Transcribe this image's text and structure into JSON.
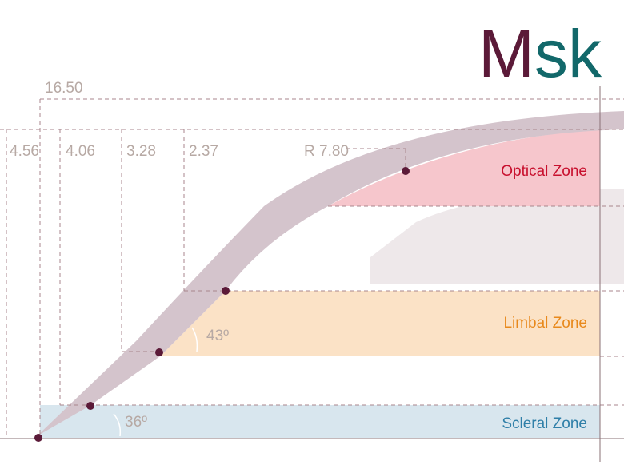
{
  "logo": {
    "part1": "M",
    "part2": "sk",
    "color1": "#5b1a38",
    "color2": "#12686a"
  },
  "dimensions": {
    "total": "16.50",
    "d1": "4.56",
    "d2": "4.06",
    "d3": "3.28",
    "d4": "2.37",
    "radius": "R 7.80"
  },
  "angles": {
    "scleral": "36º",
    "limbal": "43º"
  },
  "zones": {
    "optical": {
      "label": "Optical Zone",
      "color": "#c8102e"
    },
    "limbal": {
      "label": "Limbal Zone",
      "color": "#e8891c"
    },
    "scleral": {
      "label": "Scleral Zone",
      "color": "#2f7fa8"
    }
  },
  "colors": {
    "lens": "#d4c4cc",
    "point": "#5b1a38",
    "dash": "#a8868c",
    "optical_fill": "#f6c6cc",
    "limbal_fill": "#fbe2c6",
    "scleral_fill": "#d8e6ee",
    "cornea": "#eee8ea"
  }
}
